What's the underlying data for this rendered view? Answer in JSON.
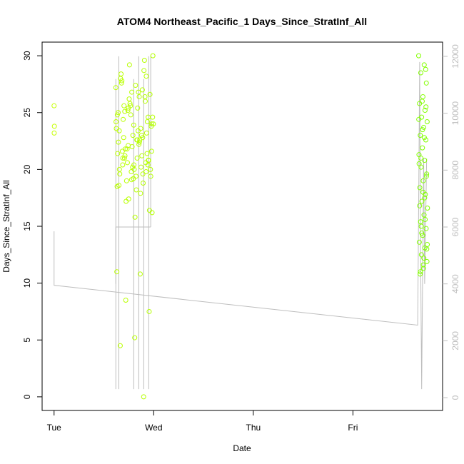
{
  "chart_data": {
    "type": "scatter",
    "title": "ATOM4 Northeast_Pacific_1 Days_Since_StratInf_All",
    "xlabel": "Date",
    "ylabel": "Days_Since_StratInf_All",
    "x_axis": {
      "kind": "date",
      "ticks": [
        {
          "value": 0,
          "label": "Tue"
        },
        {
          "value": 1,
          "label": "Wed"
        },
        {
          "value": 2,
          "label": "Thu"
        },
        {
          "value": 3,
          "label": "Fri"
        }
      ],
      "xlim": [
        -0.12,
        3.9
      ]
    },
    "y_left": {
      "ticks": [
        0,
        5,
        10,
        15,
        20,
        25,
        30
      ],
      "ylim": [
        -1.2,
        31.2
      ]
    },
    "y_right": {
      "ticks": [
        0,
        2000,
        4000,
        6000,
        8000,
        10000,
        12000
      ],
      "ylim": [
        -450,
        12500
      ],
      "color": "#bebebe"
    },
    "series": [
      {
        "kind": "points",
        "axis": "left",
        "color_start": "#c8ff00",
        "color_end": "#7fff00",
        "groups": [
          {
            "x_min": 0.0,
            "x_max": 0.005,
            "y": [
              25.6,
              23.8,
              23.2
            ]
          },
          {
            "x_min": 0.62,
            "x_max": 1.0,
            "y": [
              27.2,
              26.4,
              25.1,
              24.6,
              23.9,
              23.4,
              22.8,
              22.1,
              21.6,
              21.0,
              20.4,
              19.8,
              19.1,
              18.5,
              17.9,
              17.2,
              16.4,
              15.8,
              28.0,
              28.7,
              29.2,
              30.0,
              26.8,
              25.6,
              24.2,
              23.0,
              22.4,
              21.2,
              20.6,
              19.4,
              18.2,
              27.8,
              26.0,
              24.8,
              23.6,
              22.6,
              21.8,
              20.8,
              20.0,
              19.6,
              18.8,
              17.4,
              16.2,
              25.4,
              24.4,
              23.2,
              22.0,
              21.4,
              20.2,
              19.0,
              26.6,
              27.4,
              28.4,
              29.6,
              25.8,
              24.0,
              22.2,
              21.0,
              20.4,
              19.2,
              18.6,
              27.0,
              25.2,
              23.8,
              22.6,
              21.6,
              20.6,
              19.8,
              11.0,
              10.8,
              8.5,
              7.5,
              5.2,
              4.5,
              0.0,
              26.2,
              24.6,
              23.4,
              22.8,
              21.4,
              20.2,
              25.0,
              23.0,
              21.8,
              20.0,
              19.4,
              27.6,
              26.4,
              25.6,
              24.2,
              22.4,
              21.2,
              20.8,
              20.4,
              20.0,
              19.6,
              25.4,
              24.0,
              22.6,
              21.0,
              28.2,
              26.8,
              24.8,
              23.6
            ]
          },
          {
            "x_min": 3.66,
            "x_max": 3.75,
            "y": [
              30.0,
              29.2,
              28.5,
              27.6,
              26.4,
              25.8,
              25.2,
              24.6,
              24.2,
              23.7,
              23.0,
              22.6,
              21.9,
              21.3,
              20.8,
              20.2,
              19.6,
              19.0,
              18.4,
              17.8,
              17.2,
              16.6,
              16.0,
              15.4,
              14.8,
              14.2,
              13.6,
              13.1,
              12.5,
              11.9,
              11.3,
              10.8,
              28.8,
              26.0,
              24.4,
              22.8,
              21.0,
              19.4,
              18.0,
              16.8,
              15.6,
              14.4,
              13.4,
              12.2,
              11.0,
              25.5,
              23.5,
              20.5,
              17.5,
              15.0,
              13.0,
              11.6
            ]
          }
        ]
      },
      {
        "kind": "line",
        "axis": "right",
        "color": "#bebebe",
        "points": [
          [
            0.0,
            5850
          ],
          [
            0.0,
            3950
          ],
          [
            3.65,
            2550
          ],
          [
            3.66,
            6800
          ],
          [
            3.67,
            11800
          ],
          [
            3.675,
            7200
          ],
          [
            3.69,
            300
          ],
          [
            3.7,
            4500
          ],
          [
            3.71,
            8400
          ],
          [
            3.72,
            4000
          ],
          [
            3.73,
            6200
          ],
          [
            3.74,
            8400
          ]
        ],
        "extra_block": {
          "x_from": 0.62,
          "x_to": 0.97,
          "spikes": [
            0.62,
            0.65,
            0.8,
            0.85,
            0.9,
            0.95
          ]
        }
      }
    ],
    "grid": false,
    "legend": "none"
  }
}
